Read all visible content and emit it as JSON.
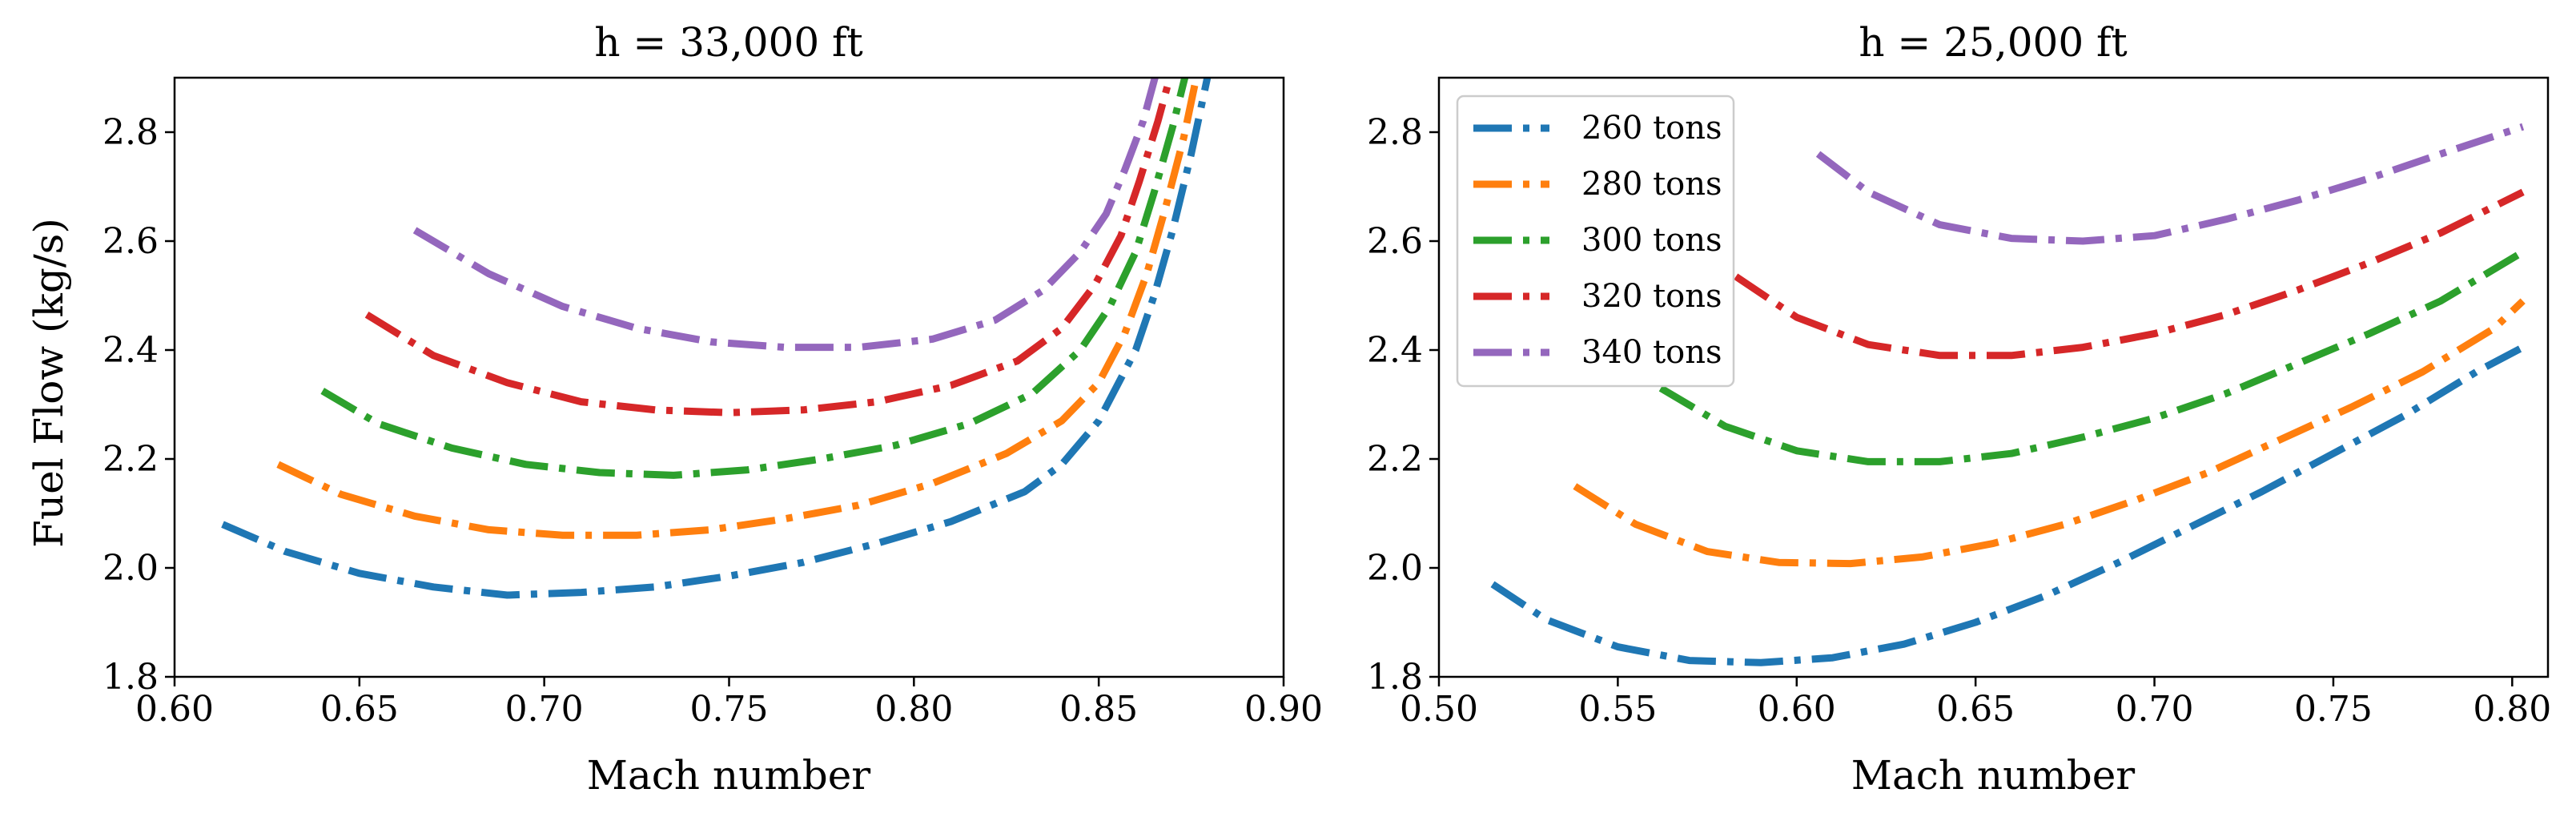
{
  "chart_data": [
    {
      "type": "line",
      "title": "h = 33,000 ft",
      "xlabel": "Mach number",
      "ylabel": "Fuel Flow (kg/s)",
      "xlim": [
        0.6,
        0.9
      ],
      "ylim": [
        1.8,
        2.9
      ],
      "xticks": [
        "0.60",
        "0.65",
        "0.70",
        "0.75",
        "0.80",
        "0.85",
        "0.90"
      ],
      "xtick_values": [
        0.6,
        0.65,
        0.7,
        0.75,
        0.8,
        0.85,
        0.9
      ],
      "yticks": [
        "1.8",
        "2.0",
        "2.2",
        "2.4",
        "2.6",
        "2.8"
      ],
      "ytick_values": [
        1.8,
        2.0,
        2.2,
        2.4,
        2.6,
        2.8
      ],
      "series": [
        {
          "name": "260 tons",
          "color": "#1f77b4",
          "x": [
            0.613,
            0.63,
            0.65,
            0.67,
            0.69,
            0.71,
            0.73,
            0.75,
            0.77,
            0.79,
            0.81,
            0.83,
            0.84,
            0.85,
            0.86,
            0.865,
            0.87,
            0.875,
            0.88
          ],
          "y": [
            2.08,
            2.03,
            1.99,
            1.965,
            1.95,
            1.955,
            1.965,
            1.985,
            2.01,
            2.045,
            2.085,
            2.14,
            2.19,
            2.27,
            2.4,
            2.5,
            2.62,
            2.76,
            2.92
          ]
        },
        {
          "name": "280 tons",
          "color": "#ff7f0e",
          "x": [
            0.628,
            0.645,
            0.665,
            0.685,
            0.705,
            0.725,
            0.745,
            0.765,
            0.785,
            0.805,
            0.825,
            0.84,
            0.85,
            0.857,
            0.863,
            0.868,
            0.873,
            0.877
          ],
          "y": [
            2.19,
            2.135,
            2.095,
            2.07,
            2.06,
            2.06,
            2.07,
            2.09,
            2.115,
            2.155,
            2.21,
            2.27,
            2.34,
            2.43,
            2.54,
            2.66,
            2.79,
            2.92
          ]
        },
        {
          "name": "300 tons",
          "color": "#2ca02c",
          "x": [
            0.64,
            0.655,
            0.675,
            0.695,
            0.715,
            0.735,
            0.755,
            0.775,
            0.795,
            0.815,
            0.832,
            0.845,
            0.853,
            0.86,
            0.865,
            0.87,
            0.874
          ],
          "y": [
            2.325,
            2.265,
            2.22,
            2.19,
            2.175,
            2.17,
            2.18,
            2.2,
            2.225,
            2.265,
            2.32,
            2.4,
            2.48,
            2.58,
            2.69,
            2.81,
            2.92
          ]
        },
        {
          "name": "320 tons",
          "color": "#d62728",
          "x": [
            0.652,
            0.67,
            0.69,
            0.71,
            0.73,
            0.75,
            0.77,
            0.79,
            0.81,
            0.828,
            0.84,
            0.849,
            0.856,
            0.861,
            0.866,
            0.87
          ],
          "y": [
            2.465,
            2.39,
            2.34,
            2.305,
            2.29,
            2.285,
            2.29,
            2.305,
            2.335,
            2.38,
            2.44,
            2.52,
            2.61,
            2.71,
            2.82,
            2.92
          ]
        },
        {
          "name": "340 tons",
          "color": "#9467bd",
          "x": [
            0.665,
            0.685,
            0.705,
            0.725,
            0.745,
            0.765,
            0.785,
            0.805,
            0.822,
            0.835,
            0.845,
            0.852,
            0.857,
            0.862,
            0.866
          ],
          "y": [
            2.62,
            2.54,
            2.48,
            2.44,
            2.415,
            2.405,
            2.405,
            2.42,
            2.455,
            2.51,
            2.58,
            2.65,
            2.73,
            2.82,
            2.92
          ]
        }
      ]
    },
    {
      "type": "line",
      "title": "h = 25,000 ft",
      "xlabel": "Mach number",
      "ylabel": "",
      "xlim": [
        0.5,
        0.81
      ],
      "ylim": [
        1.8,
        2.9
      ],
      "xticks": [
        "0.50",
        "0.55",
        "0.60",
        "0.65",
        "0.70",
        "0.75",
        "0.80"
      ],
      "xtick_values": [
        0.5,
        0.55,
        0.6,
        0.65,
        0.7,
        0.75,
        0.8
      ],
      "yticks": [
        "1.8",
        "2.0",
        "2.2",
        "2.4",
        "2.6",
        "2.8"
      ],
      "ytick_values": [
        1.8,
        2.0,
        2.2,
        2.4,
        2.6,
        2.8
      ],
      "legend": {
        "position": "upper-left",
        "entries": [
          "260 tons",
          "280 tons",
          "300 tons",
          "320 tons",
          "340 tons"
        ]
      },
      "series": [
        {
          "name": "260 tons",
          "color": "#1f77b4",
          "x": [
            0.515,
            0.53,
            0.55,
            0.57,
            0.59,
            0.61,
            0.63,
            0.65,
            0.67,
            0.69,
            0.71,
            0.73,
            0.75,
            0.77,
            0.79,
            0.803
          ],
          "y": [
            1.97,
            1.905,
            1.855,
            1.83,
            1.826,
            1.835,
            1.86,
            1.9,
            1.95,
            2.01,
            2.075,
            2.14,
            2.21,
            2.28,
            2.36,
            2.405
          ]
        },
        {
          "name": "280 tons",
          "color": "#ff7f0e",
          "x": [
            0.538,
            0.555,
            0.575,
            0.595,
            0.615,
            0.635,
            0.655,
            0.675,
            0.695,
            0.715,
            0.735,
            0.755,
            0.775,
            0.795,
            0.803
          ],
          "y": [
            2.15,
            2.08,
            2.03,
            2.01,
            2.008,
            2.02,
            2.045,
            2.08,
            2.125,
            2.175,
            2.235,
            2.295,
            2.36,
            2.44,
            2.49
          ]
        },
        {
          "name": "300 tons",
          "color": "#2ca02c",
          "x": [
            0.562,
            0.58,
            0.6,
            0.62,
            0.64,
            0.66,
            0.68,
            0.7,
            0.72,
            0.74,
            0.76,
            0.78,
            0.803
          ],
          "y": [
            2.33,
            2.26,
            2.215,
            2.195,
            2.195,
            2.21,
            2.24,
            2.275,
            2.32,
            2.375,
            2.43,
            2.49,
            2.58
          ]
        },
        {
          "name": "320 tons",
          "color": "#d62728",
          "x": [
            0.583,
            0.6,
            0.62,
            0.64,
            0.66,
            0.68,
            0.7,
            0.72,
            0.74,
            0.76,
            0.78,
            0.803
          ],
          "y": [
            2.535,
            2.46,
            2.41,
            2.39,
            2.39,
            2.405,
            2.43,
            2.465,
            2.51,
            2.56,
            2.615,
            2.69
          ]
        },
        {
          "name": "340 tons",
          "color": "#9467bd",
          "x": [
            0.606,
            0.62,
            0.64,
            0.66,
            0.68,
            0.7,
            0.72,
            0.74,
            0.76,
            0.78,
            0.803
          ],
          "y": [
            2.76,
            2.69,
            2.63,
            2.605,
            2.6,
            2.61,
            2.64,
            2.675,
            2.715,
            2.76,
            2.81
          ]
        }
      ]
    }
  ]
}
